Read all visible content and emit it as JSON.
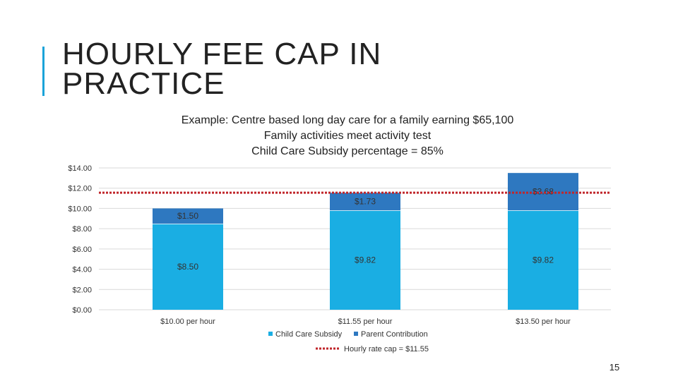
{
  "slide": {
    "title_line1": "HOURLY FEE CAP IN",
    "title_line2": "PRACTICE",
    "subtitle_lines": [
      "Example: Centre based long day care for a family earning $65,100",
      "Family activities meet activity test",
      "Child Care Subsidy percentage = 85%"
    ],
    "page_number": "15"
  },
  "colors": {
    "accent": "#1aa3d9",
    "subsidy": "#1aaee3",
    "parent": "#2e78c0",
    "cap_line": "#c0262b"
  },
  "chart_data": {
    "type": "bar",
    "stacked": true,
    "categories": [
      "$10.00 per hour",
      "$11.55 per hour",
      "$13.50 per hour"
    ],
    "series": [
      {
        "name": "Child Care Subsidy",
        "values": [
          8.5,
          9.82,
          9.82
        ],
        "labels": [
          "$8.50",
          "$9.82",
          "$9.82"
        ]
      },
      {
        "name": "Parent Contribution",
        "values": [
          1.5,
          1.73,
          3.68
        ],
        "labels": [
          "$1.50",
          "$1.73",
          "$3.68"
        ]
      }
    ],
    "reference_line": {
      "name": "Hourly rate cap = $11.55",
      "value": 11.55
    },
    "y_ticks": [
      "$0.00",
      "$2.00",
      "$4.00",
      "$6.00",
      "$8.00",
      "$10.00",
      "$12.00",
      "$14.00"
    ],
    "ylim": [
      0,
      14
    ],
    "grid": true,
    "legend_position": "bottom"
  }
}
